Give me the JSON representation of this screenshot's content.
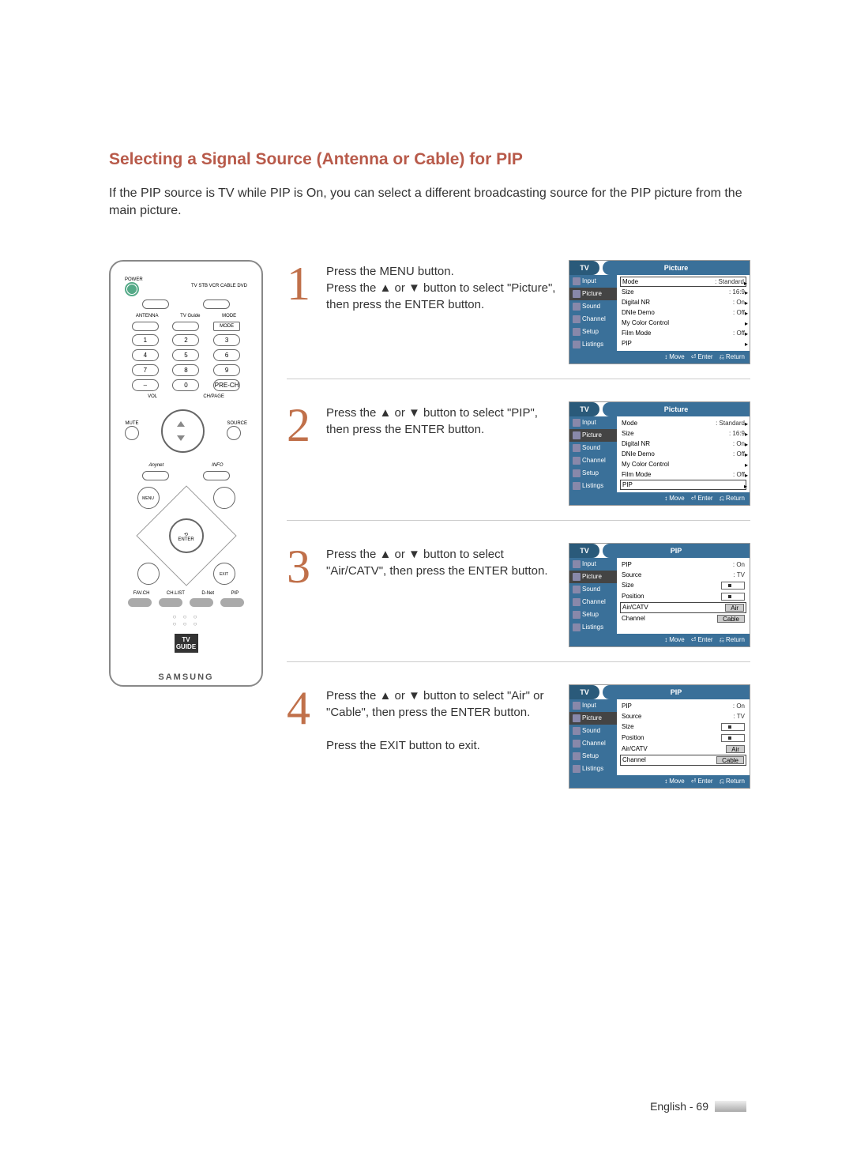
{
  "title": "Selecting a Signal Source (Antenna or Cable) for PIP",
  "intro": "If the PIP source is TV while PIP is On, you can select a different broadcasting source\nfor the PIP picture from the main picture.",
  "remote": {
    "power": "POWER",
    "deviceLabels": "TV  STB  VCR  CABLE  DVD",
    "row1": [
      "ANTENNA",
      "TV Guide",
      "MODE"
    ],
    "nums": [
      [
        "1",
        "2",
        "3"
      ],
      [
        "4",
        "5",
        "6"
      ],
      [
        "7",
        "8",
        "9"
      ],
      [
        "–",
        "0",
        "PRE-CH"
      ]
    ],
    "vol": "VOL",
    "ch": "CH/PAGE",
    "mute": "MUTE",
    "source": "SOURCE",
    "anynet": "Anynet",
    "info": "INFO",
    "enter": "ENTER",
    "dcorners": [
      "MENU",
      "",
      "",
      ""
    ],
    "botLabels": [
      "FAV.CH",
      "CH.LIST",
      "D-Net",
      "PIP"
    ],
    "tvguide": "TV\nGUIDE",
    "brand": "SAMSUNG"
  },
  "steps": [
    {
      "num": "1",
      "text": "Press the MENU button.\nPress the ▲ or ▼ button to select \"Picture\", then press the ENTER button.",
      "osd": {
        "tv": "TV",
        "title": "Picture",
        "sidebar": [
          "Input",
          "Picture",
          "Sound",
          "Channel",
          "Setup",
          "Listings"
        ],
        "selIdx": 1,
        "rows": [
          {
            "label": "Mode",
            "val": ": Standard",
            "boxed": true,
            "arrow": "▸"
          },
          {
            "label": "Size",
            "val": ": 16:9",
            "arrow": "▸"
          },
          {
            "label": "Digital NR",
            "val": ": On",
            "arrow": "▸"
          },
          {
            "label": "DNIe Demo",
            "val": ": Off",
            "arrow": "▸"
          },
          {
            "label": "My Color Control",
            "val": "",
            "arrow": "▸"
          },
          {
            "label": "Film Mode",
            "val": ": Off",
            "arrow": "▸"
          },
          {
            "label": "PIP",
            "val": "",
            "arrow": "▸"
          }
        ],
        "footer": [
          {
            "icon": "↕",
            "label": "Move"
          },
          {
            "icon": "⏎",
            "label": "Enter"
          },
          {
            "icon": "⎌",
            "label": "Return"
          }
        ]
      }
    },
    {
      "num": "2",
      "text": "Press the ▲ or ▼ button to select \"PIP\", then press the ENTER button.",
      "osd": {
        "tv": "TV",
        "title": "Picture",
        "sidebar": [
          "Input",
          "Picture",
          "Sound",
          "Channel",
          "Setup",
          "Listings"
        ],
        "selIdx": 1,
        "rows": [
          {
            "label": "Mode",
            "val": ": Standard",
            "arrow": "▸"
          },
          {
            "label": "Size",
            "val": ": 16:9",
            "arrow": "▸"
          },
          {
            "label": "Digital NR",
            "val": ": On",
            "arrow": "▸"
          },
          {
            "label": "DNIe Demo",
            "val": ": Off",
            "arrow": "▸"
          },
          {
            "label": "My Color Control",
            "val": "",
            "arrow": "▸"
          },
          {
            "label": "Film Mode",
            "val": ": Off",
            "arrow": "▸"
          },
          {
            "label": "PIP",
            "val": "",
            "boxed": true,
            "arrow": "▸"
          }
        ],
        "footer": [
          {
            "icon": "↕",
            "label": "Move"
          },
          {
            "icon": "⏎",
            "label": "Enter"
          },
          {
            "icon": "⎌",
            "label": "Return"
          }
        ]
      }
    },
    {
      "num": "3",
      "text": "Press the ▲ or ▼ button to select \"Air/CATV\", then press the ENTER button.",
      "osd": {
        "tv": "TV",
        "title": "PIP",
        "sidebar": [
          "Input",
          "Picture",
          "Sound",
          "Channel",
          "Setup",
          "Listings"
        ],
        "selIdx": 1,
        "rows": [
          {
            "label": "PIP",
            "val": ": On",
            "arrow": ""
          },
          {
            "label": "Source",
            "val": ": TV",
            "arrow": ""
          },
          {
            "label": "Size",
            "valBox": "dot",
            "arrow": ""
          },
          {
            "label": "Position",
            "valBox": "dot",
            "arrow": ""
          },
          {
            "label": "Air/CATV",
            "valBoxGrey": "Air",
            "boxed": true,
            "arrow": ""
          },
          {
            "label": "Channel",
            "valBoxGrey": "Cable",
            "arrow": ""
          }
        ],
        "footer": [
          {
            "icon": "↕",
            "label": "Move"
          },
          {
            "icon": "⏎",
            "label": "Enter"
          },
          {
            "icon": "⎌",
            "label": "Return"
          }
        ]
      }
    },
    {
      "num": "4",
      "text": "Press the ▲ or ▼ button to select \"Air\" or \"Cable\", then press the ENTER button.\n\nPress the EXIT button to exit.",
      "osd": {
        "tv": "TV",
        "title": "PIP",
        "sidebar": [
          "Input",
          "Picture",
          "Sound",
          "Channel",
          "Setup",
          "Listings"
        ],
        "selIdx": 1,
        "rows": [
          {
            "label": "PIP",
            "val": ": On",
            "arrow": ""
          },
          {
            "label": "Source",
            "val": ": TV",
            "arrow": ""
          },
          {
            "label": "Size",
            "valBox": "dot",
            "arrow": ""
          },
          {
            "label": "Position",
            "valBox": "dot",
            "arrow": ""
          },
          {
            "label": "Air/CATV",
            "valBoxGrey": "Air",
            "arrow": ""
          },
          {
            "label": "Channel",
            "valBoxGrey": "Cable",
            "boxed": true,
            "arrow": ""
          }
        ],
        "footer": [
          {
            "icon": "↕",
            "label": "Move"
          },
          {
            "icon": "⏎",
            "label": "Enter"
          },
          {
            "icon": "⎌",
            "label": "Return"
          }
        ]
      }
    }
  ],
  "pageFooter": "English - 69"
}
